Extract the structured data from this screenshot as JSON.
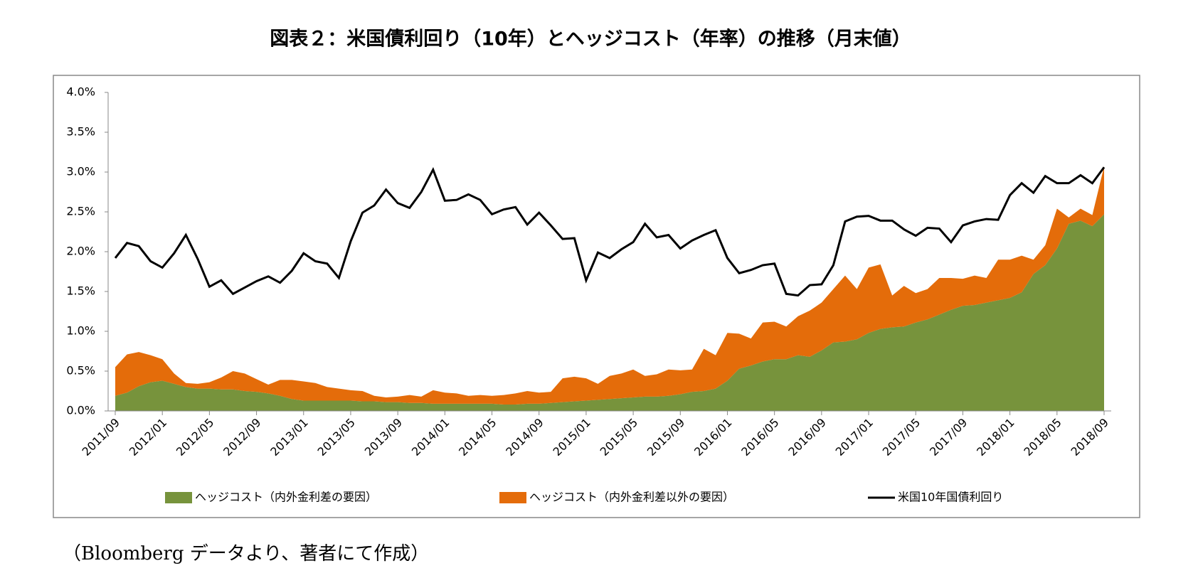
{
  "chart_data": {
    "type": "stacked-area-line",
    "title": "図表２：米国債利回り（10年）とヘッジコスト（年率）の推移（月末値）",
    "source": "（Bloomberg データより、著者にて作成）",
    "categories": [
      "2011/09",
      null,
      null,
      null,
      "2012/01",
      null,
      null,
      null,
      "2012/05",
      null,
      null,
      null,
      "2012/09",
      null,
      null,
      null,
      "2013/01",
      null,
      null,
      null,
      "2013/05",
      null,
      null,
      null,
      "2013/09",
      null,
      null,
      null,
      "2014/01",
      null,
      null,
      null,
      "2014/05",
      null,
      null,
      null,
      "2014/09",
      null,
      null,
      null,
      "2015/01",
      null,
      null,
      null,
      "2015/05",
      null,
      null,
      null,
      "2015/09",
      null,
      null,
      null,
      "2016/01",
      null,
      null,
      null,
      "2016/05",
      null,
      null,
      null,
      "2016/09",
      null,
      null,
      null,
      "2017/01",
      null,
      null,
      null,
      "2017/05",
      null,
      null,
      null,
      "2017/09",
      null,
      null,
      null,
      "2018/01",
      null,
      null,
      null,
      "2018/05",
      null,
      null,
      null,
      "2018/09"
    ],
    "series": [
      {
        "name": "ヘッジコスト（内外金利差の要因）",
        "kind": "area",
        "color": "#77933c",
        "values": [
          0.19,
          0.23,
          0.31,
          0.36,
          0.38,
          0.34,
          0.3,
          0.28,
          0.28,
          0.27,
          0.27,
          0.25,
          0.24,
          0.22,
          0.19,
          0.15,
          0.13,
          0.13,
          0.13,
          0.13,
          0.13,
          0.12,
          0.12,
          0.11,
          0.11,
          0.1,
          0.1,
          0.09,
          0.09,
          0.09,
          0.09,
          0.09,
          0.09,
          0.08,
          0.08,
          0.09,
          0.09,
          0.1,
          0.11,
          0.12,
          0.13,
          0.14,
          0.15,
          0.16,
          0.17,
          0.18,
          0.18,
          0.19,
          0.21,
          0.24,
          0.25,
          0.28,
          0.38,
          0.53,
          0.57,
          0.62,
          0.65,
          0.65,
          0.7,
          0.68,
          0.76,
          0.86,
          0.87,
          0.9,
          0.98,
          1.03,
          1.05,
          1.06,
          1.11,
          1.15,
          1.21,
          1.27,
          1.32,
          1.33,
          1.36,
          1.39,
          1.42,
          1.49,
          1.72,
          1.83,
          2.04,
          2.35,
          2.39,
          2.32,
          2.47
        ]
      },
      {
        "name": "ヘッジコスト（内外金利差以外の要因）",
        "kind": "area",
        "color": "#e46c0a",
        "values": [
          0.36,
          0.48,
          0.43,
          0.34,
          0.27,
          0.13,
          0.05,
          0.06,
          0.08,
          0.15,
          0.23,
          0.22,
          0.16,
          0.11,
          0.2,
          0.24,
          0.24,
          0.22,
          0.17,
          0.15,
          0.13,
          0.13,
          0.07,
          0.06,
          0.07,
          0.1,
          0.08,
          0.17,
          0.14,
          0.13,
          0.1,
          0.11,
          0.1,
          0.12,
          0.14,
          0.16,
          0.14,
          0.14,
          0.3,
          0.31,
          0.28,
          0.2,
          0.29,
          0.31,
          0.35,
          0.26,
          0.28,
          0.33,
          0.3,
          0.28,
          0.53,
          0.42,
          0.6,
          0.44,
          0.34,
          0.49,
          0.47,
          0.41,
          0.49,
          0.58,
          0.6,
          0.67,
          0.83,
          0.63,
          0.82,
          0.81,
          0.4,
          0.51,
          0.37,
          0.38,
          0.46,
          0.4,
          0.34,
          0.37,
          0.31,
          0.51,
          0.48,
          0.46,
          0.18,
          0.25,
          0.5,
          0.08,
          0.15,
          0.14,
          0.6
        ]
      },
      {
        "name": "米国10年国債利回り",
        "kind": "line",
        "color": "#000000",
        "values": [
          1.92,
          2.11,
          2.07,
          1.88,
          1.8,
          1.98,
          2.21,
          1.91,
          1.56,
          1.64,
          1.47,
          1.55,
          1.63,
          1.69,
          1.61,
          1.76,
          1.98,
          1.88,
          1.85,
          1.67,
          2.13,
          2.49,
          2.58,
          2.78,
          2.61,
          2.55,
          2.75,
          3.03,
          2.64,
          2.65,
          2.72,
          2.65,
          2.47,
          2.53,
          2.56,
          2.34,
          2.49,
          2.33,
          2.16,
          2.17,
          1.64,
          1.99,
          1.92,
          2.03,
          2.12,
          2.35,
          2.18,
          2.21,
          2.04,
          2.14,
          2.21,
          2.27,
          1.92,
          1.73,
          1.77,
          1.83,
          1.85,
          1.47,
          1.45,
          1.58,
          1.59,
          1.83,
          2.38,
          2.44,
          2.45,
          2.39,
          2.39,
          2.28,
          2.2,
          2.3,
          2.29,
          2.12,
          2.33,
          2.38,
          2.41,
          2.4,
          2.71,
          2.86,
          2.74,
          2.95,
          2.86,
          2.86,
          2.96,
          2.86,
          3.06
        ]
      }
    ],
    "ylim": [
      0,
      4
    ],
    "yticks": [
      {
        "value": 0,
        "label": "0.0%"
      },
      {
        "value": 0.5,
        "label": "0.5%"
      },
      {
        "value": 1,
        "label": "1.0%"
      },
      {
        "value": 1.5,
        "label": "1.5%"
      },
      {
        "value": 2,
        "label": "2.0%"
      },
      {
        "value": 2.5,
        "label": "2.5%"
      },
      {
        "value": 3,
        "label": "3.0%"
      },
      {
        "value": 3.5,
        "label": "3.5%"
      },
      {
        "value": 4,
        "label": "4.0%"
      }
    ],
    "grid": false,
    "legend": "bottom"
  }
}
